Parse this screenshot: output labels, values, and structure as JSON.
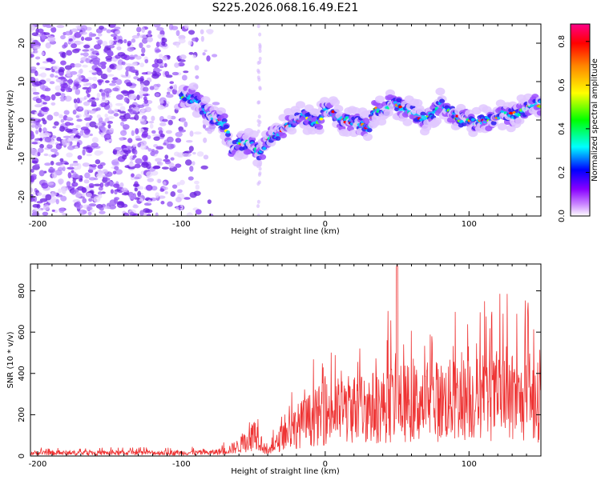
{
  "title": "S225.2026.068.16.49.E21",
  "chart_data": [
    {
      "type": "heatmap",
      "xlabel": "Height of straight line (km)",
      "ylabel": "Frequency (Hz)",
      "xlim": [
        -205,
        150
      ],
      "ylim": [
        -25,
        25
      ],
      "xticks": [
        -200,
        -100,
        0,
        100
      ],
      "yticks": [
        -20,
        -10,
        0,
        10,
        20
      ],
      "colorbar": {
        "label": "Normalized spectral amplitude",
        "range": [
          0,
          0.88
        ],
        "ticks": [
          0.0,
          0.2,
          0.4,
          0.6,
          0.8
        ],
        "colors": [
          "#ffffff",
          "#cc88ff",
          "#8800ff",
          "#0000ff",
          "#00ffff",
          "#00ff00",
          "#ffff00",
          "#ff8800",
          "#ff0000",
          "#ff0088"
        ]
      },
      "ridge_x": [
        -205,
        -100,
        -95,
        -90,
        -85,
        -80,
        -75,
        -70,
        -65,
        -60,
        -55,
        -50,
        -45,
        -40,
        -35,
        -30,
        -25,
        -20,
        -15,
        -10,
        -5,
        0,
        5,
        10,
        15,
        20,
        25,
        30,
        35,
        40,
        45,
        50,
        55,
        60,
        65,
        70,
        75,
        80,
        85,
        90,
        95,
        100,
        105,
        110,
        115,
        120,
        125,
        130,
        135,
        140,
        145,
        150
      ],
      "ridge_freq_hz": [
        null,
        6,
        6,
        5,
        3,
        1,
        0,
        -1,
        -7,
        -6,
        -6,
        -7,
        -9,
        -5,
        -4,
        -3,
        -1,
        0,
        1,
        0,
        -1,
        3,
        2,
        0,
        0,
        -1,
        -1,
        -2,
        3,
        2,
        4,
        4,
        3,
        2,
        1,
        0,
        2,
        4,
        3,
        1,
        0,
        0,
        -1,
        0,
        0,
        1,
        2,
        1,
        2,
        3,
        4,
        4
      ]
    },
    {
      "type": "line",
      "xlabel": "Height of straight line (km)",
      "ylabel": "SNR (10 * v/v)",
      "xlim": [
        -205,
        150
      ],
      "ylim": [
        0,
        930
      ],
      "xticks": [
        -200,
        -100,
        0,
        100
      ],
      "yticks": [
        0,
        200,
        400,
        600,
        800
      ],
      "color": "#ee3333",
      "series": [
        {
          "name": "SNR",
          "envelope_x": [
            -205,
            -80,
            -70,
            -60,
            -55,
            -50,
            -47,
            -45,
            -42,
            -40,
            -35,
            -30,
            -20,
            -10,
            0,
            20,
            40,
            50,
            60,
            80,
            100,
            120,
            140,
            150
          ],
          "envelope_max": [
            40,
            45,
            70,
            130,
            200,
            280,
            320,
            200,
            120,
            60,
            150,
            260,
            380,
            450,
            560,
            520,
            600,
            930,
            620,
            650,
            760,
            810,
            840,
            640
          ],
          "envelope_mean": [
            18,
            20,
            30,
            60,
            90,
            120,
            160,
            90,
            40,
            20,
            60,
            120,
            180,
            220,
            260,
            290,
            300,
            320,
            320,
            330,
            350,
            340,
            320,
            330
          ]
        }
      ]
    }
  ]
}
